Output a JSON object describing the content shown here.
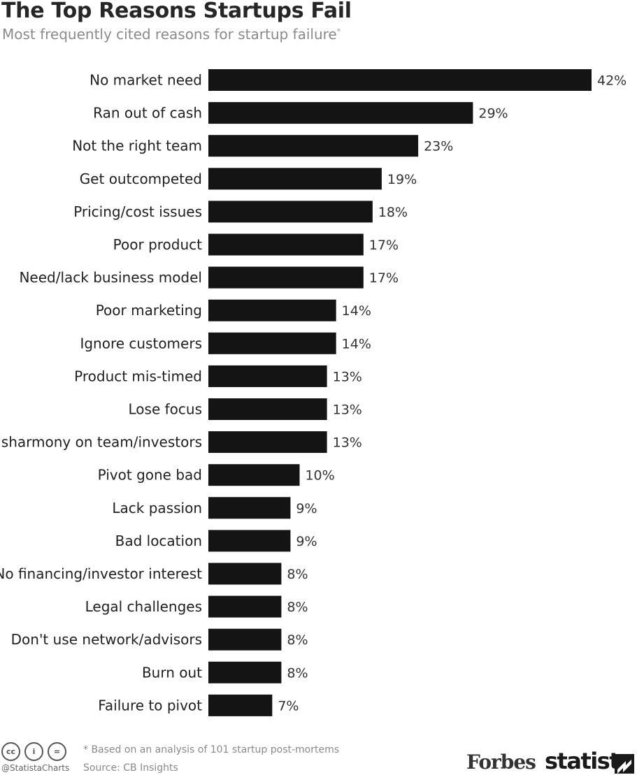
{
  "header": {
    "title": "The Top Reasons Startups Fail",
    "subtitle": "Most frequently cited reasons for startup failure",
    "subtitle_mark": "*"
  },
  "chart_data": {
    "type": "bar",
    "orientation": "horizontal",
    "title": "The Top Reasons Startups Fail",
    "subtitle": "Most frequently cited reasons for startup failure*",
    "categories": [
      "No market need",
      "Ran out of cash",
      "Not the right team",
      "Get outcompeted",
      "Pricing/cost issues",
      "Poor product",
      "Need/lack business model",
      "Poor marketing",
      "Ignore customers",
      "Product mis-timed",
      "Lose focus",
      "Disharmony on team/investors",
      "Pivot gone bad",
      "Lack passion",
      "Bad location",
      "No financing/investor interest",
      "Legal challenges",
      "Don't use network/advisors",
      "Burn out",
      "Failure to pivot"
    ],
    "values": [
      42,
      29,
      23,
      19,
      18,
      17,
      17,
      14,
      14,
      13,
      13,
      13,
      10,
      9,
      9,
      8,
      8,
      8,
      8,
      7
    ],
    "value_labels": [
      "42%",
      "29%",
      "23%",
      "19%",
      "18%",
      "17%",
      "17%",
      "14%",
      "14%",
      "13%",
      "13%",
      "13%",
      "10%",
      "9%",
      "9%",
      "8%",
      "8%",
      "8%",
      "8%",
      "7%"
    ],
    "unit": "%",
    "xlim": [
      0,
      42
    ],
    "bar_color": "#141414",
    "grid": false,
    "legend": "none"
  },
  "footer": {
    "license_icons": [
      "cc-icon",
      "attribution-icon",
      "no-derivatives-icon"
    ],
    "license_glyphs": [
      "cc",
      "i",
      "="
    ],
    "handle": "@StatistaCharts",
    "note": "* Based on an analysis of 101 startup post-mortems",
    "source": "Source: CB Insights",
    "forbes_logo": "Forbes",
    "statista_logo": "statista"
  }
}
